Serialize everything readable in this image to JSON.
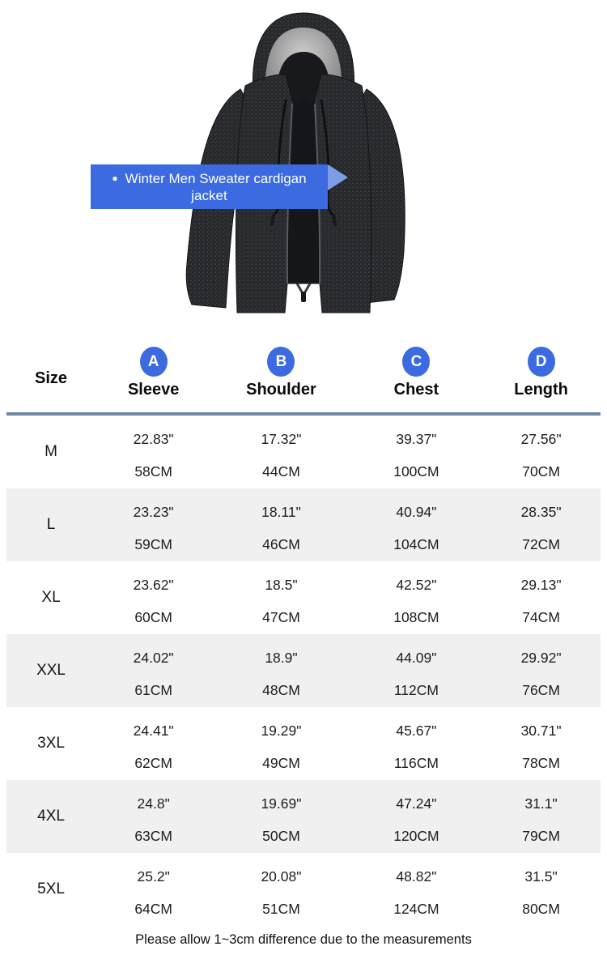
{
  "banner": {
    "bullet": "●",
    "line1": "Winter Men Sweater cardigan",
    "line2": "jacket"
  },
  "size_chart": {
    "size_header": "Size",
    "columns": [
      {
        "letter": "A",
        "label": "Sleeve"
      },
      {
        "letter": "B",
        "label": "Shoulder"
      },
      {
        "letter": "C",
        "label": "Chest"
      },
      {
        "letter": "D",
        "label": "Length"
      }
    ],
    "rows": [
      {
        "size": "M",
        "measurements": [
          {
            "inch": "22.83\"",
            "cm": "58CM"
          },
          {
            "inch": "17.32\"",
            "cm": "44CM"
          },
          {
            "inch": "39.37\"",
            "cm": "100CM"
          },
          {
            "inch": "27.56\"",
            "cm": "70CM"
          }
        ]
      },
      {
        "size": "L",
        "measurements": [
          {
            "inch": "23.23\"",
            "cm": "59CM"
          },
          {
            "inch": "18.11\"",
            "cm": "46CM"
          },
          {
            "inch": "40.94\"",
            "cm": "104CM"
          },
          {
            "inch": "28.35\"",
            "cm": "72CM"
          }
        ]
      },
      {
        "size": "XL",
        "measurements": [
          {
            "inch": "23.62\"",
            "cm": "60CM"
          },
          {
            "inch": "18.5\"",
            "cm": "47CM"
          },
          {
            "inch": "42.52\"",
            "cm": "108CM"
          },
          {
            "inch": "29.13\"",
            "cm": "74CM"
          }
        ]
      },
      {
        "size": "XXL",
        "measurements": [
          {
            "inch": "24.02\"",
            "cm": "61CM"
          },
          {
            "inch": "18.9\"",
            "cm": "48CM"
          },
          {
            "inch": "44.09\"",
            "cm": "112CM"
          },
          {
            "inch": "29.92\"",
            "cm": "76CM"
          }
        ]
      },
      {
        "size": "3XL",
        "measurements": [
          {
            "inch": "24.41\"",
            "cm": "62CM"
          },
          {
            "inch": "19.29\"",
            "cm": "49CM"
          },
          {
            "inch": "45.67\"",
            "cm": "116CM"
          },
          {
            "inch": "30.71\"",
            "cm": "78CM"
          }
        ]
      },
      {
        "size": "4XL",
        "measurements": [
          {
            "inch": "24.8\"",
            "cm": "63CM"
          },
          {
            "inch": "19.69\"",
            "cm": "50CM"
          },
          {
            "inch": "47.24\"",
            "cm": "120CM"
          },
          {
            "inch": "31.1\"",
            "cm": "79CM"
          }
        ]
      },
      {
        "size": "5XL",
        "measurements": [
          {
            "inch": "25.2\"",
            "cm": "64CM"
          },
          {
            "inch": "20.08\"",
            "cm": "51CM"
          },
          {
            "inch": "48.82\"",
            "cm": "124CM"
          },
          {
            "inch": "31.5\"",
            "cm": "80CM"
          }
        ]
      }
    ]
  },
  "footer": {
    "note": "Please allow 1~3cm difference due to the measurements"
  },
  "colors": {
    "banner_blue": "#3b6ae1",
    "arrow_blue": "#7e9ce6",
    "circle_blue": "#3b6ae1",
    "divider": "#6e87a6",
    "stripe": "#f0f0f0"
  },
  "chart_data": {
    "type": "table",
    "title": "Winter Men Sweater cardigan jacket",
    "columns": [
      "Size",
      "A Sleeve",
      "B Shoulder",
      "C Chest",
      "D Length"
    ],
    "units": [
      "inches",
      "CM"
    ],
    "rows": [
      {
        "size": "M",
        "sleeve": {
          "in": 22.83,
          "cm": 58
        },
        "shoulder": {
          "in": 17.32,
          "cm": 44
        },
        "chest": {
          "in": 39.37,
          "cm": 100
        },
        "length": {
          "in": 27.56,
          "cm": 70
        }
      },
      {
        "size": "L",
        "sleeve": {
          "in": 23.23,
          "cm": 59
        },
        "shoulder": {
          "in": 18.11,
          "cm": 46
        },
        "chest": {
          "in": 40.94,
          "cm": 104
        },
        "length": {
          "in": 28.35,
          "cm": 72
        }
      },
      {
        "size": "XL",
        "sleeve": {
          "in": 23.62,
          "cm": 60
        },
        "shoulder": {
          "in": 18.5,
          "cm": 47
        },
        "chest": {
          "in": 42.52,
          "cm": 108
        },
        "length": {
          "in": 29.13,
          "cm": 74
        }
      },
      {
        "size": "XXL",
        "sleeve": {
          "in": 24.02,
          "cm": 61
        },
        "shoulder": {
          "in": 18.9,
          "cm": 48
        },
        "chest": {
          "in": 44.09,
          "cm": 112
        },
        "length": {
          "in": 29.92,
          "cm": 76
        }
      },
      {
        "size": "3XL",
        "sleeve": {
          "in": 24.41,
          "cm": 62
        },
        "shoulder": {
          "in": 19.29,
          "cm": 49
        },
        "chest": {
          "in": 45.67,
          "cm": 116
        },
        "length": {
          "in": 30.71,
          "cm": 78
        }
      },
      {
        "size": "4XL",
        "sleeve": {
          "in": 24.8,
          "cm": 63
        },
        "shoulder": {
          "in": 19.69,
          "cm": 50
        },
        "chest": {
          "in": 47.24,
          "cm": 120
        },
        "length": {
          "in": 31.1,
          "cm": 79
        }
      },
      {
        "size": "5XL",
        "sleeve": {
          "in": 25.2,
          "cm": 64
        },
        "shoulder": {
          "in": 20.08,
          "cm": 51
        },
        "chest": {
          "in": 48.82,
          "cm": 124
        },
        "length": {
          "in": 31.5,
          "cm": 80
        }
      }
    ],
    "note": "Please allow 1~3cm difference due to the measurements"
  }
}
